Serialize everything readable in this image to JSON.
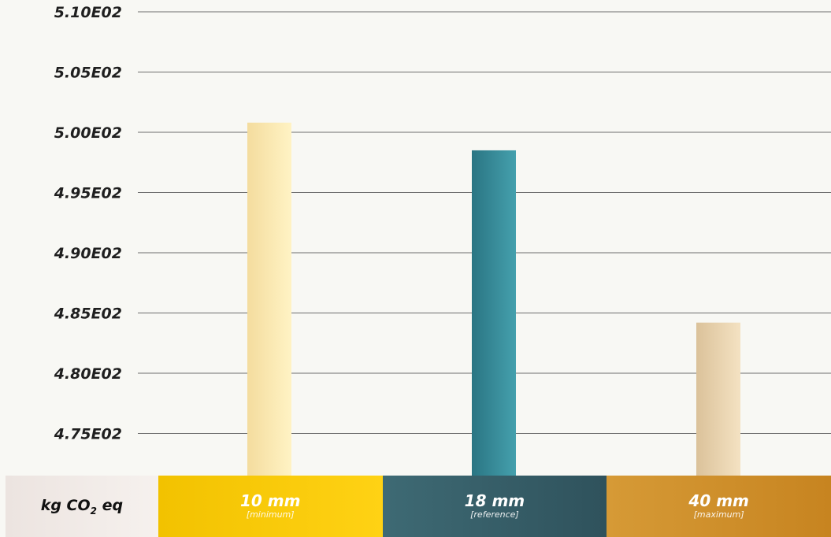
{
  "chart_data": {
    "type": "bar",
    "categories": [
      "10 mm",
      "18 mm",
      "40 mm"
    ],
    "category_notes": [
      "[minimum]",
      "[reference]",
      "[maximum]"
    ],
    "values": [
      500.8,
      498.5,
      484.2
    ],
    "unit_label": "kg CO",
    "unit_subscript": "2",
    "unit_suffix": " eq",
    "ylim": [
      471.5,
      510
    ],
    "yticks": [
      475,
      480,
      485,
      490,
      495,
      500,
      505,
      510
    ],
    "ytick_labels": [
      "4.75E02",
      "4.80E02",
      "4.85E02",
      "4.90E02",
      "4.95E02",
      "5.00E02",
      "5.05E02",
      "5.10E02"
    ],
    "grid": true,
    "bar_colors": [
      [
        "#f4dc9e",
        "#fff3c4"
      ],
      [
        "#2a7583",
        "#45a0ad"
      ],
      [
        "#dbc29a",
        "#f4e2c2"
      ]
    ],
    "category_colors": [
      "#ffcc00",
      "#35606a",
      "#d08e2a"
    ]
  }
}
